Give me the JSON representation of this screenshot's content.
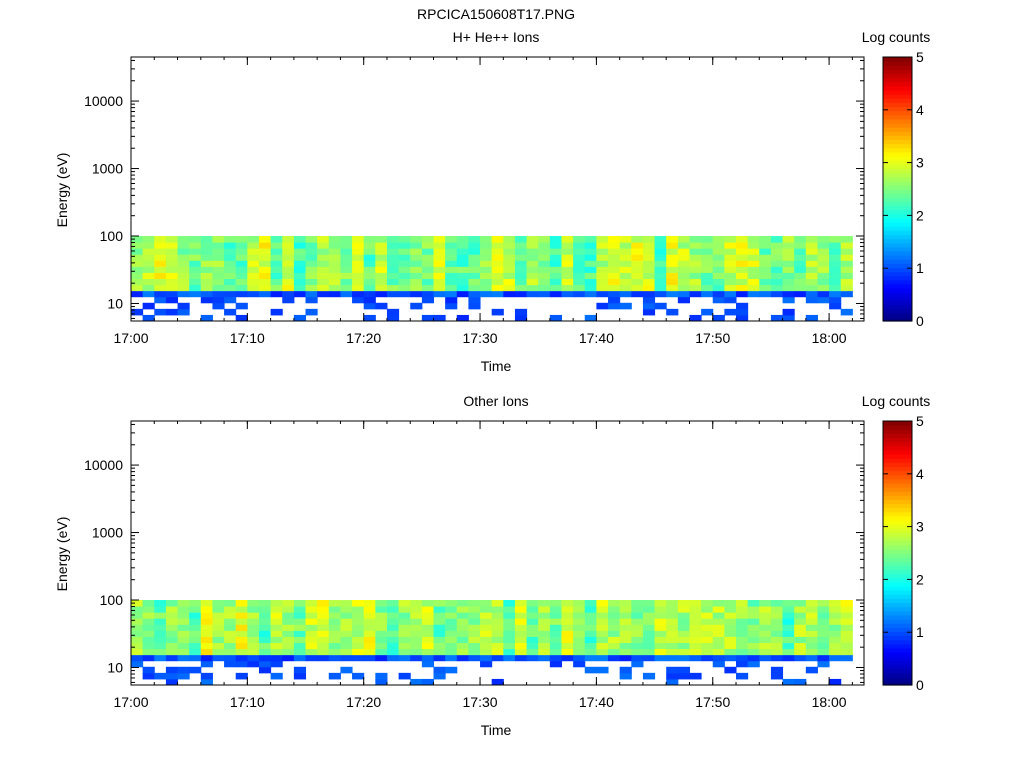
{
  "page_title": "RPCICA150608T17.PNG",
  "chart_data": [
    {
      "type": "heatmap",
      "title": "H+ He++ Ions",
      "xlabel": "Time",
      "ylabel": "Energy (eV)",
      "x_range": [
        "17:00",
        "18:03"
      ],
      "x_ticks": [
        "17:00",
        "17:10",
        "17:20",
        "17:30",
        "17:40",
        "17:50",
        "18:00"
      ],
      "y_scale": "log",
      "ylim": [
        5.5,
        45000
      ],
      "y_ticks": [
        "10",
        "100",
        "1000",
        "10000"
      ],
      "colorbar": {
        "label": "Log counts",
        "range": [
          0,
          5
        ],
        "ticks": [
          "0",
          "1",
          "2",
          "3",
          "4",
          "5"
        ]
      },
      "data_energy_range": [
        5.5,
        100
      ],
      "grid": false
    },
    {
      "type": "heatmap",
      "title": "Other Ions",
      "xlabel": "Time",
      "ylabel": "Energy (eV)",
      "x_range": [
        "17:00",
        "18:03"
      ],
      "x_ticks": [
        "17:00",
        "17:10",
        "17:20",
        "17:30",
        "17:40",
        "17:50",
        "18:00"
      ],
      "y_scale": "log",
      "ylim": [
        5.5,
        45000
      ],
      "y_ticks": [
        "10",
        "100",
        "1000",
        "10000"
      ],
      "colorbar": {
        "label": "Log counts",
        "range": [
          0,
          5
        ],
        "ticks": [
          "0",
          "1",
          "2",
          "3",
          "4",
          "5"
        ]
      },
      "data_energy_range": [
        5.5,
        100
      ],
      "grid": false
    }
  ]
}
